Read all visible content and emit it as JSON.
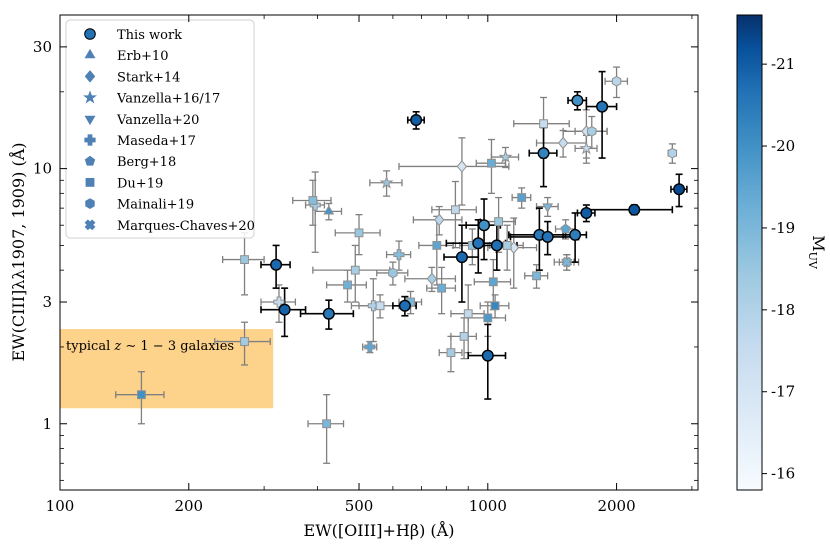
{
  "chart_data": {
    "type": "scatter",
    "xlabel": "EW([OIII]+Hβ) (Å)",
    "ylabel": "EW(CIII]λλ1907, 1909) (Å)",
    "xscale": "log",
    "yscale": "log",
    "xlim": [
      100,
      3100
    ],
    "ylim": [
      0.55,
      40
    ],
    "xticks": [
      {
        "value": 100,
        "label": "100"
      },
      {
        "value": 200,
        "label": "200"
      },
      {
        "value": 500,
        "label": "500"
      },
      {
        "value": 1000,
        "label": "1000"
      },
      {
        "value": 2000,
        "label": "2000"
      }
    ],
    "yticks": [
      {
        "value": 1,
        "label": "1"
      },
      {
        "value": 3,
        "label": "3"
      },
      {
        "value": 10,
        "label": "10"
      },
      {
        "value": 30,
        "label": "30"
      }
    ],
    "colorbar": {
      "label": "MUV",
      "label_main": "M",
      "label_sub": "UV",
      "range": [
        -21.6,
        -15.8
      ],
      "ticks": [
        {
          "value": -21,
          "label": "-21"
        },
        {
          "value": -20,
          "label": "-20"
        },
        {
          "value": -19,
          "label": "-19"
        },
        {
          "value": -18,
          "label": "-18"
        },
        {
          "value": -17,
          "label": "-17"
        },
        {
          "value": -16,
          "label": "-16"
        }
      ]
    },
    "shaded_region": {
      "label": "typical z ∼ 1 − 3 galaxies",
      "label_prefix": "typical ",
      "label_z": "z",
      "label_suffix": " ∼ 1 − 3 galaxies",
      "x_range": [
        100,
        315
      ],
      "y_range": [
        1.15,
        2.35
      ],
      "color": "#fdd28a"
    },
    "legend": {
      "location": "upper left",
      "entries": [
        {
          "label": "This work",
          "marker": "circle"
        },
        {
          "label": "Erb+10",
          "marker": "triangle-up"
        },
        {
          "label": "Stark+14",
          "marker": "diamond"
        },
        {
          "label": "Vanzella+16/17",
          "marker": "star"
        },
        {
          "label": "Vanzella+20",
          "marker": "triangle-down"
        },
        {
          "label": "Maseda+17",
          "marker": "plus"
        },
        {
          "label": "Berg+18",
          "marker": "pentagon"
        },
        {
          "label": "Du+19",
          "marker": "square"
        },
        {
          "label": "Mainali+19",
          "marker": "hexagon"
        },
        {
          "label": "Marques-Chaves+20",
          "marker": "x"
        }
      ]
    },
    "series": [
      {
        "name": "This work",
        "marker": "circle",
        "points": [
          {
            "x": 680,
            "y": 15.5,
            "xerr": 30,
            "yerr": 1.2,
            "muv": -21.0
          },
          {
            "x": 320,
            "y": 4.2,
            "xerr": 25,
            "yerr": 0.8,
            "muv": -20.8
          },
          {
            "x": 335,
            "y": 2.8,
            "xerr": 40,
            "yerr": 0.6,
            "muv": -20.9
          },
          {
            "x": 425,
            "y": 2.7,
            "xerr": 60,
            "yerr": 0.35,
            "muv": -20.5
          },
          {
            "x": 640,
            "y": 2.9,
            "xerr": 40,
            "yerr": 0.25,
            "muv": -20.7
          },
          {
            "x": 870,
            "y": 4.5,
            "xerr": 80,
            "yerr": 1.5,
            "muv": -20.8
          },
          {
            "x": 950,
            "y": 5.1,
            "xerr": 150,
            "yerr": 1.2,
            "muv": -20.6
          },
          {
            "x": 980,
            "y": 6.0,
            "xerr": 90,
            "yerr": 1.6,
            "muv": -20.0
          },
          {
            "x": 1000,
            "y": 1.85,
            "xerr": 100,
            "yerr": 0.6,
            "muv": -20.8
          },
          {
            "x": 1050,
            "y": 5.0,
            "xerr": 120,
            "yerr": 1.0,
            "muv": -20.7
          },
          {
            "x": 1320,
            "y": 5.5,
            "xerr": 200,
            "yerr": 1.5,
            "muv": -20.5
          },
          {
            "x": 1380,
            "y": 5.4,
            "xerr": 250,
            "yerr": 0.8,
            "muv": -20.6
          },
          {
            "x": 1350,
            "y": 11.5,
            "xerr": 100,
            "yerr": 3.0,
            "muv": -20.3
          },
          {
            "x": 1600,
            "y": 5.5,
            "xerr": 100,
            "yerr": 1.2,
            "muv": -20.4
          },
          {
            "x": 1620,
            "y": 18.5,
            "xerr": 80,
            "yerr": 1.5,
            "muv": -20.0
          },
          {
            "x": 1700,
            "y": 6.7,
            "xerr": 80,
            "yerr": 0.5,
            "muv": -21.0
          },
          {
            "x": 1850,
            "y": 17.5,
            "xerr": 150,
            "yerr": 6.5,
            "muv": -20.6
          },
          {
            "x": 2200,
            "y": 6.9,
            "xerr": 500,
            "yerr": 0.3,
            "muv": -21.1
          },
          {
            "x": 2800,
            "y": 8.3,
            "xerr": 120,
            "yerr": 1.2,
            "muv": -21.3
          }
        ]
      },
      {
        "name": "Erb+10",
        "marker": "triangle-up",
        "points": [
          {
            "x": 425,
            "y": 6.8,
            "xerr": 30,
            "yerr": 0.5,
            "muv": -19.9
          }
        ]
      },
      {
        "name": "Stark+14",
        "marker": "diamond",
        "points": [
          {
            "x": 870,
            "y": 10.2,
            "xerr": 250,
            "yerr": 3.0,
            "muv": -17.0
          },
          {
            "x": 770,
            "y": 6.3,
            "xerr": 100,
            "yerr": 0.8,
            "muv": -17.8
          },
          {
            "x": 740,
            "y": 3.7,
            "xerr": 100,
            "yerr": 0.4,
            "muv": -18.2
          },
          {
            "x": 1500,
            "y": 12.6,
            "xerr": 200,
            "yerr": 1.5,
            "muv": -17.5
          },
          {
            "x": 1700,
            "y": 14.0,
            "xerr": 200,
            "yerr": 3.0,
            "muv": -17.2
          },
          {
            "x": 1150,
            "y": 4.9,
            "xerr": 150,
            "yerr": 1.5,
            "muv": -17.0
          }
        ]
      },
      {
        "name": "Vanzella+16/17",
        "marker": "star",
        "points": [
          {
            "x": 580,
            "y": 8.8,
            "xerr": 50,
            "yerr": 1.0,
            "muv": -18.5
          },
          {
            "x": 1100,
            "y": 11.1,
            "xerr": 80,
            "yerr": 1.0,
            "muv": -18.2
          },
          {
            "x": 1700,
            "y": 12.0,
            "xerr": 100,
            "yerr": 1.5,
            "muv": -17.5
          }
        ]
      },
      {
        "name": "Vanzella+20",
        "marker": "triangle-down",
        "points": [
          {
            "x": 1530,
            "y": 4.3,
            "xerr": 100,
            "yerr": 0.3,
            "muv": -19.8
          },
          {
            "x": 1380,
            "y": 7.1,
            "xerr": 80,
            "yerr": 0.6,
            "muv": -19.0
          }
        ]
      },
      {
        "name": "Maseda+17",
        "marker": "plus",
        "points": [
          {
            "x": 620,
            "y": 4.6,
            "xerr": 40,
            "yerr": 0.6,
            "muv": -18.8
          },
          {
            "x": 530,
            "y": 2.0,
            "xerr": 20,
            "yerr": 0.1,
            "muv": -19.5
          },
          {
            "x": 540,
            "y": 2.9,
            "xerr": 60,
            "yerr": 0.8,
            "muv": -18.0
          },
          {
            "x": 325,
            "y": 3.0,
            "xerr": 30,
            "yerr": 0.5,
            "muv": -17.5
          },
          {
            "x": 395,
            "y": 7.2,
            "xerr": 20,
            "yerr": 2.5,
            "muv": -18.2
          }
        ]
      },
      {
        "name": "Berg+18",
        "marker": "pentagon",
        "points": [
          {
            "x": 1520,
            "y": 5.8,
            "xerr": 80,
            "yerr": 0.5,
            "muv": -19.5
          }
        ]
      },
      {
        "name": "Du+19",
        "marker": "square",
        "points": [
          {
            "x": 270,
            "y": 4.4,
            "xerr": 30,
            "yerr": 1.2,
            "muv": -18.5
          },
          {
            "x": 270,
            "y": 2.1,
            "xerr": 40,
            "yerr": 0.4,
            "muv": -18.3
          },
          {
            "x": 155,
            "y": 1.3,
            "xerr": 20,
            "yerr": 0.3,
            "muv": -20.0
          },
          {
            "x": 420,
            "y": 1.0,
            "xerr": 40,
            "yerr": 0.3,
            "muv": -19.0
          },
          {
            "x": 390,
            "y": 7.5,
            "xerr": 40,
            "yerr": 1.5,
            "muv": -18.8
          },
          {
            "x": 500,
            "y": 5.6,
            "xerr": 60,
            "yerr": 1.0,
            "muv": -18.5
          },
          {
            "x": 490,
            "y": 4.0,
            "xerr": 100,
            "yerr": 1.0,
            "muv": -18.2
          },
          {
            "x": 470,
            "y": 3.5,
            "xerr": 50,
            "yerr": 0.5,
            "muv": -19.2
          },
          {
            "x": 560,
            "y": 2.9,
            "xerr": 60,
            "yerr": 0.3,
            "muv": -17.5
          },
          {
            "x": 660,
            "y": 3.0,
            "xerr": 40,
            "yerr": 0.3,
            "muv": -19.0
          },
          {
            "x": 760,
            "y": 5.0,
            "xerr": 70,
            "yerr": 1.5,
            "muv": -19.5
          },
          {
            "x": 780,
            "y": 3.4,
            "xerr": 60,
            "yerr": 0.7,
            "muv": -19.3
          },
          {
            "x": 820,
            "y": 1.9,
            "xerr": 50,
            "yerr": 0.3,
            "muv": -18.3
          },
          {
            "x": 840,
            "y": 6.9,
            "xerr": 100,
            "yerr": 2.0,
            "muv": -17.7
          },
          {
            "x": 880,
            "y": 2.2,
            "xerr": 60,
            "yerr": 0.4,
            "muv": -18.0
          },
          {
            "x": 900,
            "y": 2.7,
            "xerr": 80,
            "yerr": 0.8,
            "muv": -17.6
          },
          {
            "x": 920,
            "y": 5.0,
            "xerr": 60,
            "yerr": 0.8,
            "muv": -18.7
          },
          {
            "x": 1000,
            "y": 2.6,
            "xerr": 100,
            "yerr": 0.4,
            "muv": -19.8
          },
          {
            "x": 1020,
            "y": 10.5,
            "xerr": 80,
            "yerr": 2.5,
            "muv": -19.3
          },
          {
            "x": 1030,
            "y": 3.6,
            "xerr": 100,
            "yerr": 0.8,
            "muv": -19.5
          },
          {
            "x": 1040,
            "y": 2.9,
            "xerr": 80,
            "yerr": 0.3,
            "muv": -20.2
          },
          {
            "x": 1060,
            "y": 6.2,
            "xerr": 100,
            "yerr": 1.5,
            "muv": -18.5
          },
          {
            "x": 1110,
            "y": 5.0,
            "xerr": 100,
            "yerr": 1.0,
            "muv": -18.2
          },
          {
            "x": 1200,
            "y": 7.7,
            "xerr": 60,
            "yerr": 0.7,
            "muv": -19.6
          },
          {
            "x": 1300,
            "y": 3.8,
            "xerr": 80,
            "yerr": 0.4,
            "muv": -19.0
          },
          {
            "x": 1350,
            "y": 15.0,
            "xerr": 200,
            "yerr": 4.0,
            "muv": -17.5
          }
        ]
      },
      {
        "name": "Mainali+19",
        "marker": "hexagon",
        "points": [
          {
            "x": 2700,
            "y": 11.5,
            "xerr": 60,
            "yerr": 1.0,
            "muv": -18.0
          },
          {
            "x": 2000,
            "y": 22.0,
            "xerr": 120,
            "yerr": 3.0,
            "muv": -17.8
          },
          {
            "x": 1750,
            "y": 14.0,
            "xerr": 150,
            "yerr": 2.0,
            "muv": -18.2
          },
          {
            "x": 600,
            "y": 3.9,
            "xerr": 50,
            "yerr": 0.4,
            "muv": -18.5
          }
        ]
      },
      {
        "name": "Marques-Chaves+20",
        "marker": "x",
        "points": [
          {
            "x": 1530,
            "y": 4.3,
            "xerr": 60,
            "yerr": 0.3,
            "muv": -19.0
          }
        ]
      }
    ]
  }
}
